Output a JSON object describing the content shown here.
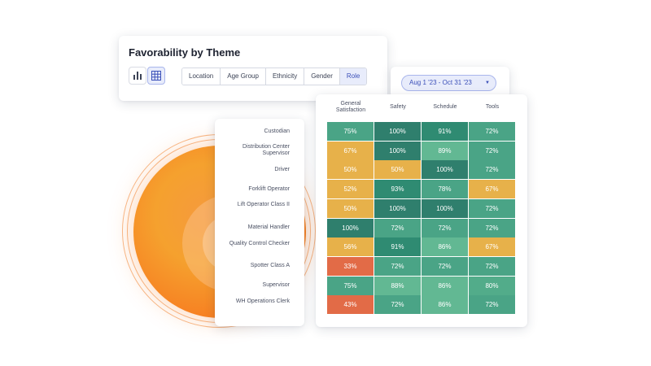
{
  "header": {
    "title": "Favorability by Theme",
    "view_buttons": [
      {
        "icon": "bar-chart-icon",
        "active": false
      },
      {
        "icon": "table-grid-icon",
        "active": true
      }
    ],
    "filters": [
      {
        "label": "Location",
        "active": false
      },
      {
        "label": "Age Group",
        "active": false
      },
      {
        "label": "Ethnicity",
        "active": false
      },
      {
        "label": "Gender",
        "active": false
      },
      {
        "label": "Role",
        "active": true
      }
    ]
  },
  "date_range": {
    "label": "Aug 1 '23 - Oct 31 '23",
    "icon": "caret-down-icon"
  },
  "colors": {
    "dark_green": "#2f7f6d",
    "green": "#4aa486",
    "light_green": "#62b893",
    "amber": "#e7b14a",
    "orange_red": "#e26b47",
    "accent": "#3a4fb8"
  },
  "heatmap": {
    "columns": [
      "General Satisfaction",
      "Safety",
      "Schedule",
      "Tools"
    ],
    "rows": [
      {
        "label": "Custodian",
        "values": [
          "75%",
          "100%",
          "91%",
          "72%"
        ]
      },
      {
        "label": "Distribution Center Supervisor",
        "values": [
          "67%",
          "100%",
          "89%",
          "72%"
        ]
      },
      {
        "label": "Driver",
        "values": [
          "50%",
          "50%",
          "100%",
          "72%"
        ]
      },
      {
        "label": "Forklift Operator",
        "values": [
          "52%",
          "93%",
          "78%",
          "67%"
        ]
      },
      {
        "label": "Lift Operator Class II",
        "values": [
          "50%",
          "100%",
          "100%",
          "72%"
        ]
      },
      {
        "label": "Material Handler",
        "values": [
          "100%",
          "72%",
          "72%",
          "72%"
        ]
      },
      {
        "label": "Quality Control Checker",
        "values": [
          "56%",
          "91%",
          "86%",
          "67%"
        ]
      },
      {
        "label": "Spotter Class A",
        "values": [
          "33%",
          "72%",
          "72%",
          "72%"
        ]
      },
      {
        "label": "Supervisor",
        "values": [
          "75%",
          "88%",
          "86%",
          "80%"
        ]
      },
      {
        "label": "WH Operations Clerk",
        "values": [
          "43%",
          "72%",
          "86%",
          "72%"
        ]
      }
    ]
  }
}
